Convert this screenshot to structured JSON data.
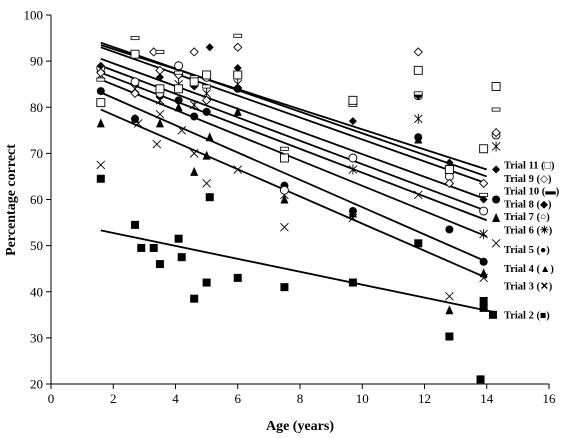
{
  "chart_data": {
    "type": "scatter",
    "xlabel": "Age (years)",
    "ylabel": "Percentage correct",
    "xlim": [
      0,
      16
    ],
    "ylim": [
      20,
      100
    ],
    "xticks": [
      "0",
      "2",
      "4",
      "6",
      "8",
      "10",
      "12",
      "14",
      "16"
    ],
    "yticks": [
      "20",
      "30",
      "40",
      "50",
      "60",
      "70",
      "80",
      "90",
      "100"
    ],
    "grid": false,
    "series": [
      {
        "name": "Trial 2",
        "label": "Trial 2 (■)",
        "marker": "filled-square",
        "points": [
          [
            1.6,
            64.5
          ],
          [
            2.7,
            54.5
          ],
          [
            2.9,
            49.5
          ],
          [
            3.3,
            49.5
          ],
          [
            3.5,
            46
          ],
          [
            4.1,
            51.5
          ],
          [
            4.2,
            47.5
          ],
          [
            4.6,
            38.5
          ],
          [
            5.0,
            42
          ],
          [
            5.1,
            60.5
          ],
          [
            6.0,
            43
          ],
          [
            7.5,
            41
          ],
          [
            9.7,
            42
          ],
          [
            11.8,
            50.5
          ],
          [
            12.8,
            30.3
          ],
          [
            13.8,
            21
          ],
          [
            13.9,
            38
          ],
          [
            13.9,
            36.5
          ],
          [
            14.2,
            35
          ]
        ],
        "trend": [
          [
            1.6,
            53.3
          ],
          [
            14.3,
            35.5
          ]
        ]
      },
      {
        "name": "Trial 3",
        "label": "Trial 3 (✕)",
        "marker": "x",
        "points": [
          [
            1.6,
            67.5
          ],
          [
            2.8,
            76.5
          ],
          [
            3.4,
            72
          ],
          [
            3.5,
            78.5
          ],
          [
            4.2,
            75
          ],
          [
            4.6,
            70
          ],
          [
            5.0,
            63.5
          ],
          [
            6.0,
            66.5
          ],
          [
            7.5,
            54
          ],
          [
            9.7,
            56
          ],
          [
            11.8,
            61
          ],
          [
            12.8,
            39
          ],
          [
            13.9,
            43
          ],
          [
            14.3,
            50.5
          ]
        ],
        "trend": [
          [
            1.6,
            79.5
          ],
          [
            14.0,
            43.0
          ]
        ]
      },
      {
        "name": "Trial 4",
        "label": "Trial 4 (▲)",
        "marker": "filled-triangle",
        "points": [
          [
            1.6,
            76.5
          ],
          [
            2.7,
            77.5
          ],
          [
            3.5,
            76.5
          ],
          [
            4.1,
            80
          ],
          [
            4.6,
            66
          ],
          [
            5.0,
            69.5
          ],
          [
            5.1,
            73.5
          ],
          [
            6.0,
            79
          ],
          [
            7.5,
            60
          ],
          [
            9.7,
            57
          ],
          [
            11.8,
            73
          ],
          [
            12.8,
            36
          ],
          [
            13.9,
            44
          ],
          [
            14.3,
            56
          ]
        ],
        "trend": [
          [
            1.6,
            83.2
          ],
          [
            14.0,
            46.5
          ]
        ]
      },
      {
        "name": "Trial 5",
        "label": "Trial 5 (●)",
        "marker": "filled-circle",
        "points": [
          [
            1.6,
            83.5
          ],
          [
            2.7,
            77.5
          ],
          [
            3.5,
            82.5
          ],
          [
            4.1,
            81.5
          ],
          [
            4.6,
            78
          ],
          [
            5.0,
            79
          ],
          [
            6.0,
            84
          ],
          [
            7.5,
            63
          ],
          [
            9.7,
            57.5
          ],
          [
            11.8,
            73.5
          ],
          [
            12.8,
            53.5
          ],
          [
            13.9,
            46.5
          ],
          [
            14.3,
            60
          ]
        ],
        "trend": [
          [
            1.6,
            86.0
          ],
          [
            14.0,
            52.0
          ]
        ]
      },
      {
        "name": "Trial 6",
        "label": "Trial 6 (✳)",
        "marker": "asterisk",
        "points": [
          [
            1.6,
            87
          ],
          [
            2.7,
            84
          ],
          [
            3.5,
            81.5
          ],
          [
            4.1,
            85
          ],
          [
            4.6,
            80.5
          ],
          [
            5.0,
            83
          ],
          [
            6.0,
            85
          ],
          [
            7.5,
            61
          ],
          [
            9.7,
            66.5
          ],
          [
            11.8,
            77.5
          ],
          [
            12.8,
            66.5
          ],
          [
            13.9,
            52.5
          ],
          [
            14.3,
            71.5
          ]
        ],
        "trend": [
          [
            1.6,
            87.5
          ],
          [
            14.0,
            55.5
          ]
        ]
      },
      {
        "name": "Trial 7",
        "label": "Trial 7 (○)",
        "marker": "open-circle",
        "points": [
          [
            1.6,
            88.5
          ],
          [
            2.7,
            85.5
          ],
          [
            3.5,
            83
          ],
          [
            4.1,
            89
          ],
          [
            4.6,
            85
          ],
          [
            5.0,
            86.5
          ],
          [
            6.0,
            87
          ],
          [
            7.5,
            62
          ],
          [
            9.7,
            69
          ],
          [
            11.8,
            82.5
          ],
          [
            12.8,
            65
          ],
          [
            13.9,
            57.5
          ],
          [
            14.3,
            74
          ]
        ],
        "trend": [
          [
            1.6,
            89.0
          ],
          [
            14.0,
            57.5
          ]
        ]
      },
      {
        "name": "Trial 8",
        "label": "Trial 8 (◆)",
        "marker": "filled-diamond",
        "points": [
          [
            1.6,
            89
          ],
          [
            2.7,
            91.5
          ],
          [
            3.5,
            86.5
          ],
          [
            4.1,
            84
          ],
          [
            4.6,
            84.5
          ],
          [
            5.1,
            93
          ],
          [
            6.0,
            88.5
          ],
          [
            9.7,
            77
          ],
          [
            11.8,
            82.5
          ],
          [
            12.8,
            68
          ],
          [
            13.9,
            60
          ],
          [
            14.3,
            66.5
          ]
        ],
        "trend": [
          [
            1.6,
            90.5
          ],
          [
            14.0,
            60.0
          ]
        ]
      },
      {
        "name": "Trial 9",
        "label": "Trial 9 (◇)",
        "marker": "open-diamond",
        "points": [
          [
            1.6,
            87.5
          ],
          [
            2.7,
            83
          ],
          [
            3.3,
            92
          ],
          [
            3.5,
            88
          ],
          [
            4.1,
            87
          ],
          [
            4.6,
            92
          ],
          [
            5.0,
            81.5
          ],
          [
            6.0,
            93
          ],
          [
            9.7,
            81.5
          ],
          [
            11.8,
            92
          ],
          [
            12.8,
            63.5
          ],
          [
            13.9,
            63.5
          ],
          [
            14.3,
            74.5
          ]
        ],
        "trend": [
          [
            1.6,
            93.0
          ],
          [
            14.0,
            63.5
          ]
        ]
      },
      {
        "name": "Trial 10",
        "label": "Trial 10 (▬)",
        "marker": "dash",
        "points": [
          [
            1.6,
            86
          ],
          [
            2.7,
            95
          ],
          [
            3.5,
            92
          ],
          [
            4.1,
            87.5
          ],
          [
            4.6,
            86.5
          ],
          [
            5.0,
            84.5
          ],
          [
            6.0,
            95.5
          ],
          [
            7.5,
            71
          ],
          [
            9.7,
            80.5
          ],
          [
            11.8,
            83
          ],
          [
            12.8,
            67
          ],
          [
            13.9,
            61
          ],
          [
            14.3,
            79.5
          ]
        ],
        "trend": [
          [
            1.6,
            94.0
          ],
          [
            14.0,
            65.0
          ]
        ]
      },
      {
        "name": "Trial 11",
        "label": "Trial 11 (□)",
        "marker": "open-square",
        "points": [
          [
            1.6,
            81
          ],
          [
            2.7,
            91.5
          ],
          [
            3.5,
            84
          ],
          [
            4.1,
            84
          ],
          [
            4.6,
            85.5
          ],
          [
            5.0,
            87
          ],
          [
            6.0,
            87
          ],
          [
            7.5,
            69
          ],
          [
            9.7,
            81.5
          ],
          [
            11.8,
            88
          ],
          [
            12.8,
            66.5
          ],
          [
            13.9,
            71
          ],
          [
            14.3,
            84.5
          ]
        ],
        "trend": [
          [
            1.6,
            93.5
          ],
          [
            14.0,
            66.5
          ]
        ]
      }
    ]
  }
}
